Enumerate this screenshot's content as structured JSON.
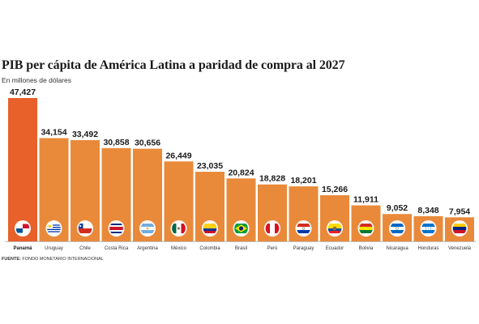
{
  "header": {
    "title": "PIB per cápita de América Latina a paridad de compra al 2027",
    "subtitle": "En millones de dólares"
  },
  "footer": {
    "source_label": "FUENTE:",
    "source_text": "FONDO MONETARIO INTERNACIONAL"
  },
  "colors": {
    "highlight": "#e8602a",
    "bar": "#e98a3a"
  },
  "chart_data": {
    "type": "bar",
    "title": "PIB per cápita de América Latina a paridad de compra al 2027",
    "subtitle": "En millones de dólares",
    "xlabel": "",
    "ylabel": "",
    "ylim": [
      0,
      47427
    ],
    "grid": false,
    "legend": "none",
    "categories": [
      "Panamá",
      "Uruguay",
      "Chile",
      "Costa Rica",
      "Argentina",
      "México",
      "Colombia",
      "Brasil",
      "Perú",
      "Paraguay",
      "Ecuador",
      "Bolivia",
      "Nicaragua",
      "Honduras",
      "Venezuela"
    ],
    "values": [
      47427,
      34154,
      33492,
      30858,
      30656,
      26449,
      23035,
      20824,
      18828,
      18201,
      15266,
      11911,
      9052,
      8348,
      7954
    ],
    "value_labels": [
      "47,427",
      "34,154",
      "33,492",
      "30,858",
      "30,656",
      "26,449",
      "23,035",
      "20,824",
      "18,828",
      "18,201",
      "15,266",
      "11,911",
      "9,052",
      "8,348",
      "7,954"
    ],
    "flags": [
      "flag-panama-icon",
      "flag-uruguay-icon",
      "flag-chile-icon",
      "flag-costa-rica-icon",
      "flag-argentina-icon",
      "flag-mexico-icon",
      "flag-colombia-icon",
      "flag-brasil-icon",
      "flag-peru-icon",
      "flag-paraguay-icon",
      "flag-ecuador-icon",
      "flag-bolivia-icon",
      "flag-nicaragua-icon",
      "flag-honduras-icon",
      "flag-venezuela-icon"
    ]
  }
}
